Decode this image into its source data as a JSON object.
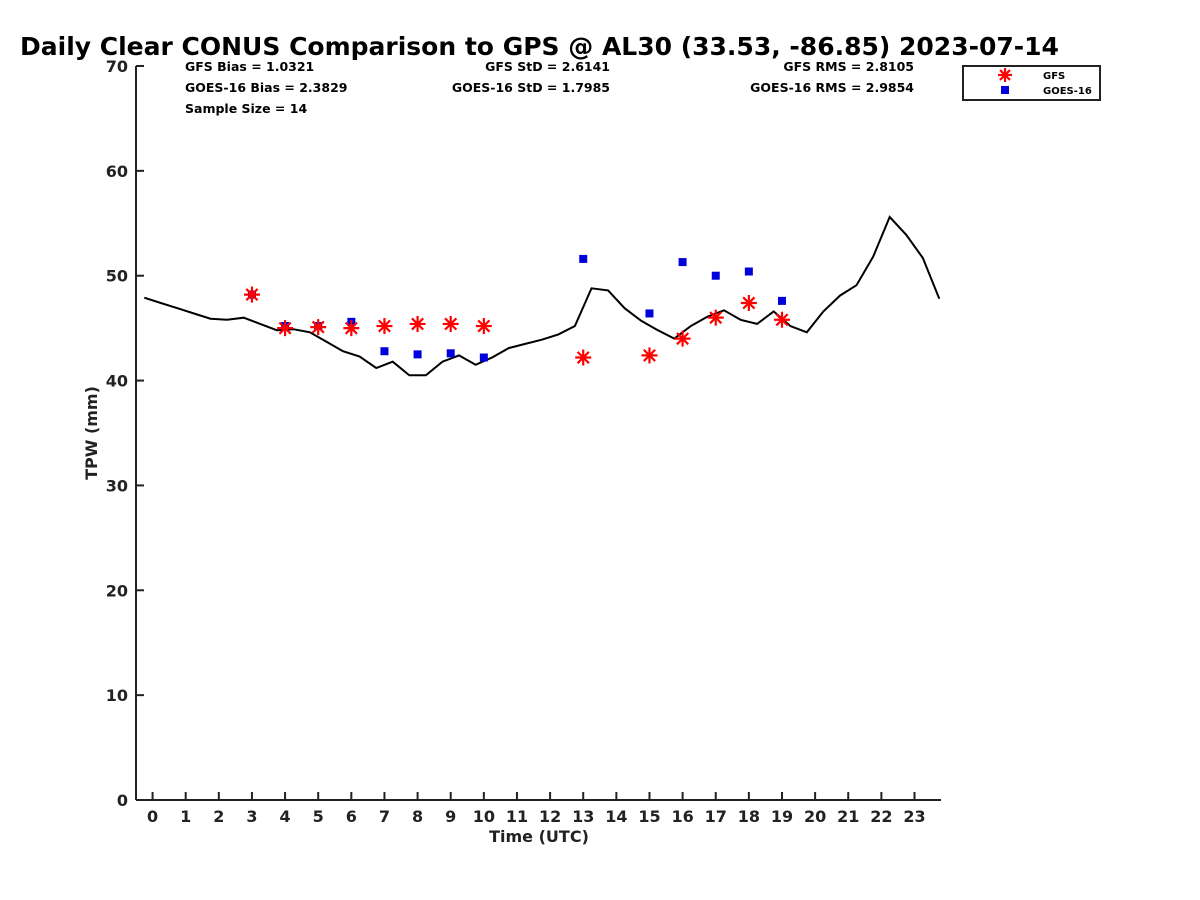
{
  "chart_data": {
    "type": "scatter",
    "title": "Daily Clear CONUS Comparison to GPS @ AL30 (33.53, -86.85) 2023-07-14",
    "xlabel": "Time (UTC)",
    "ylabel": "TPW (mm)",
    "xlim": [
      -0.5,
      23.8
    ],
    "ylim": [
      0,
      70
    ],
    "xticks": [
      "0",
      "1",
      "2",
      "3",
      "4",
      "5",
      "6",
      "7",
      "8",
      "9",
      "10",
      "11",
      "12",
      "13",
      "14",
      "15",
      "16",
      "17",
      "18",
      "19",
      "20",
      "21",
      "22",
      "23"
    ],
    "yticks": [
      "0",
      "10",
      "20",
      "30",
      "40",
      "50",
      "60",
      "70"
    ],
    "grid": false,
    "legend_position": "top-right",
    "stats": {
      "gfs_bias": "GFS Bias = 1.0321",
      "goes_bias": "GOES-16 Bias = 2.3829",
      "sample_size": "Sample Size = 14",
      "gfs_std": "GFS StD = 2.6141",
      "goes_std": "GOES-16 StD = 1.7985",
      "gfs_rms": "GFS RMS = 2.8105",
      "goes_rms": "GOES-16 RMS = 2.9854"
    },
    "gps_line": {
      "color": "#000000",
      "x": [
        -0.25,
        0.25,
        0.75,
        1.25,
        1.75,
        2.25,
        2.75,
        3.25,
        3.75,
        4.25,
        4.75,
        5.25,
        5.75,
        6.25,
        6.75,
        7.25,
        7.75,
        8.25,
        8.75,
        9.25,
        9.75,
        10.25,
        10.75,
        11.25,
        11.75,
        12.25,
        12.75,
        13.25,
        13.75,
        14.25,
        14.75,
        15.25,
        15.75,
        16.25,
        16.75,
        17.25,
        17.75,
        18.25,
        18.75,
        19.25,
        19.75,
        20.25,
        20.75,
        21.25,
        21.75,
        22.25,
        22.75,
        23.25,
        23.75
      ],
      "y": [
        47.9,
        47.4,
        46.9,
        46.4,
        45.9,
        45.8,
        46.0,
        45.4,
        44.8,
        44.9,
        44.6,
        43.7,
        42.8,
        42.3,
        41.2,
        41.8,
        40.5,
        40.5,
        41.8,
        42.4,
        41.5,
        42.2,
        43.1,
        43.5,
        43.9,
        44.4,
        45.2,
        48.8,
        48.6,
        46.9,
        45.7,
        44.8,
        44.0,
        45.2,
        46.1,
        46.7,
        45.8,
        45.4,
        46.6,
        45.2,
        44.6,
        46.6,
        48.1,
        49.1,
        51.8,
        55.6,
        53.9,
        51.7,
        47.8
      ]
    },
    "series": [
      {
        "name": "GFS",
        "marker": "asterisk",
        "color": "#ff0000",
        "x": [
          3,
          4,
          5,
          6,
          7,
          8,
          9,
          10,
          13,
          15,
          16,
          17,
          18,
          19
        ],
        "y": [
          48.2,
          45.0,
          45.1,
          45.0,
          45.2,
          45.4,
          45.4,
          45.2,
          42.2,
          42.4,
          44.0,
          46.0,
          47.4,
          45.8
        ]
      },
      {
        "name": "GOES-16",
        "marker": "square",
        "color": "#0000dd",
        "x": [
          3,
          4,
          5,
          6,
          7,
          8,
          9,
          10,
          13,
          15,
          16,
          17,
          18,
          19
        ],
        "y": [
          48.2,
          45.2,
          45.2,
          45.6,
          42.8,
          42.5,
          42.6,
          42.2,
          51.6,
          46.4,
          51.3,
          50.0,
          50.4,
          47.6
        ]
      }
    ]
  }
}
